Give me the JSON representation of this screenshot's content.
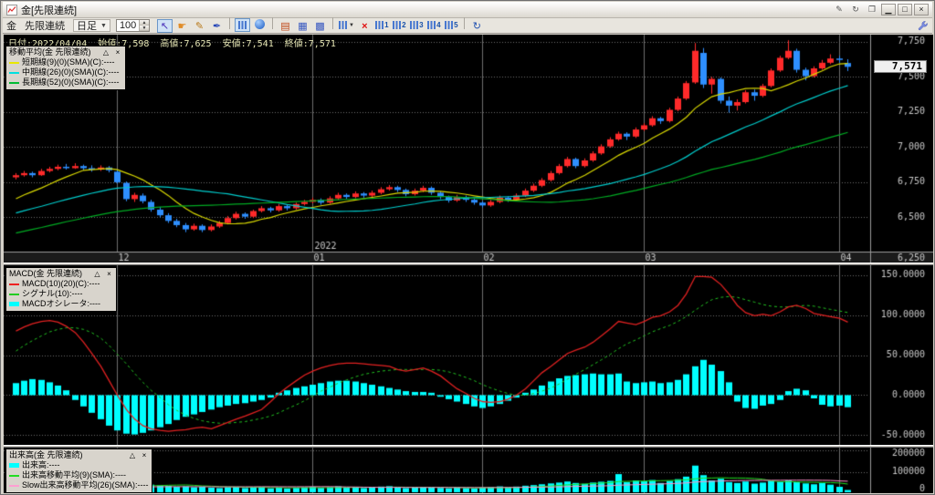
{
  "window": {
    "title": "金[先限連続]",
    "buttons": [
      {
        "name": "annotate-icon",
        "glyph": "✎",
        "style": "flat"
      },
      {
        "name": "refresh-window-icon",
        "glyph": "↻",
        "style": "flat"
      },
      {
        "name": "duplicate-window-icon",
        "glyph": "❐",
        "style": "flat"
      },
      {
        "name": "minimize-button",
        "glyph": "▁",
        "style": "raised"
      },
      {
        "name": "maximize-button",
        "glyph": "□",
        "style": "raised"
      },
      {
        "name": "close-button",
        "glyph": "×",
        "style": "raised"
      }
    ]
  },
  "toolbar": {
    "symbol": "金",
    "series": "先限連続",
    "timeframe": "日足",
    "dropdown_arrow": "▼",
    "bar_count": "100",
    "spin_up": "▲",
    "spin_down": "▼",
    "buttons": [
      {
        "name": "select-cursor-button",
        "glyph": "↖",
        "color": "#4a30b8",
        "selected": true
      },
      {
        "name": "pan-hand-button",
        "glyph": "☛",
        "color": "#e08c28"
      },
      {
        "name": "pencil-button",
        "glyph": "✎",
        "color": "#b87818"
      },
      {
        "name": "pen-button",
        "glyph": "✒",
        "color": "#2848b8"
      },
      {
        "type": "sep"
      },
      {
        "name": "chart-cursor-button",
        "bars": true,
        "selected": true
      },
      {
        "name": "scroll-latest-button",
        "shape": "circle"
      },
      {
        "type": "sep"
      },
      {
        "name": "memo-button",
        "glyph": "▤",
        "color": "#c04818"
      },
      {
        "name": "quote-table-button",
        "glyph": "▦",
        "color": "#3858c0"
      },
      {
        "name": "grid-button",
        "glyph": "▩",
        "color": "#3858c0"
      },
      {
        "type": "sep"
      },
      {
        "name": "chart-type-button",
        "bars": true,
        "dropdown": true
      },
      {
        "name": "delete-chart-button",
        "glyph": "×",
        "color": "#e01010",
        "bold": true
      },
      {
        "name": "board-1-button",
        "bars": true,
        "glyph": "1"
      },
      {
        "name": "board-2-button",
        "bars": true,
        "glyph": "2"
      },
      {
        "name": "board-3-button",
        "bars": true,
        "glyph": "3"
      },
      {
        "name": "board-4-button",
        "bars": true,
        "glyph": "4"
      },
      {
        "name": "board-5-button",
        "bars": true,
        "glyph": "5"
      },
      {
        "type": "sep"
      },
      {
        "name": "refresh-button",
        "glyph": "↻",
        "color": "#2050b0"
      }
    ]
  },
  "header_info": "日付:2022/04/04  始値:7,598  高値:7,625  安値:7,541  終値:7,571",
  "legends": {
    "min_glyph": "△",
    "close_glyph": "×",
    "ma": {
      "title": "移動平均(金 先限連続)",
      "rows": [
        {
          "color": "#e8e800",
          "label": "短期線(9)(0)(SMA)(C):----"
        },
        {
          "color": "#00e0e0",
          "label": "中期線(26)(0)(SMA)(C):----"
        },
        {
          "color": "#00bb33",
          "label": "長期線(52)(0)(SMA)(C):----"
        }
      ]
    },
    "macd": {
      "title": "MACD(金 先限連続)",
      "rows": [
        {
          "color": "#ee2222",
          "label": "MACD(10)(20)(C):----"
        },
        {
          "color": "#22cc22",
          "label": "シグナル(10):----"
        },
        {
          "color": "#00ffff",
          "label": "MACDオシレータ:----"
        }
      ]
    },
    "volume": {
      "title": "出来高(金 先限連続)",
      "rows": [
        {
          "color": "#00ffff",
          "label": "出来高:----"
        },
        {
          "color": "#22dd22",
          "label": "出来高移動平均(9)(SMA):----"
        },
        {
          "color": "#ff9ed2",
          "label": "Slow出来高移動平均(26)(SMA):----"
        }
      ]
    }
  },
  "chart_data": [
    {
      "type": "candlestick",
      "name": "price-panel",
      "symbol": "金 先限連続 日足",
      "current_price": 7571,
      "current_price_label": "7,571",
      "ylim": [
        6250,
        7800
      ],
      "y_ticks": [
        6250,
        6500,
        6750,
        7000,
        7250,
        7500,
        7750
      ],
      "y_tick_labels": [
        "6,250",
        "6,500",
        "6,750",
        "7,000",
        "7,250",
        "7,500",
        "7,750"
      ],
      "x_ticks": [
        {
          "i": 12,
          "label": "12"
        },
        {
          "i": 35,
          "label": "01"
        },
        {
          "i": 55,
          "label": "02"
        },
        {
          "i": 74,
          "label": "03"
        },
        {
          "i": 97,
          "label": "04"
        }
      ],
      "year_annotation": {
        "i": 35,
        "label": "2022"
      },
      "up_color": "#ff2a2a",
      "down_color": "#2e8fff",
      "ma_lines": [
        {
          "period": 9,
          "color": "#d8d800",
          "label": "短期線(9)"
        },
        {
          "period": 26,
          "color": "#00cccc",
          "label": "中期線(26)"
        },
        {
          "period": 52,
          "color": "#00aa22",
          "label": "長期線(52)"
        }
      ],
      "ma_seed": {
        "start": 6100,
        "end": 6650,
        "count": 52
      },
      "ohlc": [
        [
          6785,
          6815,
          6770,
          6800
        ],
        [
          6800,
          6830,
          6790,
          6815
        ],
        [
          6815,
          6825,
          6785,
          6800
        ],
        [
          6800,
          6845,
          6795,
          6830
        ],
        [
          6830,
          6860,
          6820,
          6845
        ],
        [
          6845,
          6875,
          6835,
          6860
        ],
        [
          6860,
          6880,
          6840,
          6850
        ],
        [
          6850,
          6885,
          6845,
          6865
        ],
        [
          6865,
          6875,
          6835,
          6850
        ],
        [
          6850,
          6870,
          6825,
          6840
        ],
        [
          6840,
          6870,
          6830,
          6855
        ],
        [
          6855,
          6865,
          6820,
          6835
        ],
        [
          6825,
          6835,
          6740,
          6750
        ],
        [
          6745,
          6755,
          6615,
          6630
        ],
        [
          6630,
          6675,
          6610,
          6660
        ],
        [
          6655,
          6670,
          6600,
          6615
        ],
        [
          6610,
          6625,
          6540,
          6555
        ],
        [
          6555,
          6575,
          6500,
          6515
        ],
        [
          6515,
          6530,
          6460,
          6475
        ],
        [
          6475,
          6490,
          6430,
          6445
        ],
        [
          6445,
          6460,
          6395,
          6415
        ],
        [
          6415,
          6455,
          6405,
          6440
        ],
        [
          6440,
          6450,
          6395,
          6410
        ],
        [
          6410,
          6450,
          6400,
          6435
        ],
        [
          6435,
          6475,
          6425,
          6460
        ],
        [
          6460,
          6510,
          6450,
          6495
        ],
        [
          6495,
          6540,
          6485,
          6525
        ],
        [
          6525,
          6535,
          6490,
          6505
        ],
        [
          6505,
          6555,
          6495,
          6545
        ],
        [
          6545,
          6580,
          6535,
          6565
        ],
        [
          6565,
          6575,
          6535,
          6550
        ],
        [
          6550,
          6595,
          6540,
          6580
        ],
        [
          6580,
          6590,
          6550,
          6565
        ],
        [
          6565,
          6605,
          6555,
          6595
        ],
        [
          6595,
          6625,
          6585,
          6610
        ],
        [
          6610,
          6640,
          6600,
          6625
        ],
        [
          6625,
          6635,
          6590,
          6605
        ],
        [
          6605,
          6650,
          6595,
          6635
        ],
        [
          6635,
          6675,
          6625,
          6660
        ],
        [
          6660,
          6670,
          6630,
          6645
        ],
        [
          6645,
          6685,
          6635,
          6670
        ],
        [
          6670,
          6680,
          6640,
          6655
        ],
        [
          6655,
          6690,
          6645,
          6675
        ],
        [
          6675,
          6715,
          6665,
          6700
        ],
        [
          6700,
          6730,
          6690,
          6715
        ],
        [
          6715,
          6725,
          6680,
          6695
        ],
        [
          6695,
          6705,
          6650,
          6665
        ],
        [
          6665,
          6705,
          6655,
          6690
        ],
        [
          6690,
          6725,
          6680,
          6710
        ],
        [
          6710,
          6720,
          6660,
          6675
        ],
        [
          6675,
          6685,
          6630,
          6645
        ],
        [
          6645,
          6655,
          6605,
          6620
        ],
        [
          6620,
          6660,
          6610,
          6645
        ],
        [
          6645,
          6655,
          6610,
          6625
        ],
        [
          6625,
          6635,
          6590,
          6605
        ],
        [
          6605,
          6615,
          6570,
          6585
        ],
        [
          6585,
          6625,
          6575,
          6610
        ],
        [
          6610,
          6655,
          6600,
          6640
        ],
        [
          6640,
          6650,
          6610,
          6625
        ],
        [
          6625,
          6670,
          6615,
          6655
        ],
        [
          6655,
          6705,
          6645,
          6690
        ],
        [
          6690,
          6740,
          6680,
          6725
        ],
        [
          6725,
          6780,
          6715,
          6765
        ],
        [
          6765,
          6830,
          6755,
          6815
        ],
        [
          6815,
          6880,
          6805,
          6865
        ],
        [
          6865,
          6930,
          6855,
          6915
        ],
        [
          6915,
          6925,
          6850,
          6865
        ],
        [
          6865,
          6920,
          6855,
          6905
        ],
        [
          6905,
          6970,
          6895,
          6955
        ],
        [
          6955,
          7020,
          6945,
          7005
        ],
        [
          7005,
          7070,
          6995,
          7055
        ],
        [
          7055,
          7110,
          7045,
          7095
        ],
        [
          7095,
          7105,
          7050,
          7075
        ],
        [
          7075,
          7140,
          7065,
          7125
        ],
        [
          7125,
          7170,
          7115,
          7155
        ],
        [
          7155,
          7220,
          7145,
          7205
        ],
        [
          7205,
          7215,
          7165,
          7185
        ],
        [
          7185,
          7280,
          7175,
          7265
        ],
        [
          7265,
          7360,
          7255,
          7345
        ],
        [
          7345,
          7470,
          7335,
          7455
        ],
        [
          7460,
          7740,
          7450,
          7685
        ],
        [
          7670,
          7705,
          7420,
          7445
        ],
        [
          7445,
          7500,
          7380,
          7485
        ],
        [
          7485,
          7495,
          7310,
          7330
        ],
        [
          7330,
          7360,
          7245,
          7295
        ],
        [
          7295,
          7340,
          7260,
          7320
        ],
        [
          7320,
          7405,
          7310,
          7390
        ],
        [
          7390,
          7410,
          7330,
          7365
        ],
        [
          7365,
          7450,
          7355,
          7435
        ],
        [
          7435,
          7560,
          7425,
          7545
        ],
        [
          7545,
          7650,
          7535,
          7635
        ],
        [
          7635,
          7760,
          7625,
          7685
        ],
        [
          7685,
          7700,
          7530,
          7550
        ],
        [
          7550,
          7565,
          7475,
          7505
        ],
        [
          7505,
          7575,
          7495,
          7560
        ],
        [
          7560,
          7620,
          7550,
          7600
        ],
        [
          7600,
          7660,
          7590,
          7630
        ],
        [
          7630,
          7650,
          7600,
          7620
        ],
        [
          7598,
          7625,
          7541,
          7571
        ]
      ]
    },
    {
      "type": "macd",
      "name": "macd-panel",
      "ylim": [
        -62,
        162
      ],
      "y_ticks": [
        -50,
        0,
        50,
        100,
        150
      ],
      "y_tick_labels": [
        "-50.0000",
        "0.0000",
        "50.0000",
        "100.0000",
        "150.0000"
      ],
      "macd_color": "#e02020",
      "signal_color": "#20c020",
      "hist_color": "#00ffff",
      "macd": [
        80,
        85,
        89,
        92,
        93,
        91,
        86,
        78,
        66,
        52,
        36,
        18,
        0,
        -18,
        -30,
        -38,
        -42,
        -44,
        -45,
        -44,
        -43,
        -41,
        -40,
        -42,
        -38,
        -34,
        -30,
        -26,
        -22,
        -18,
        -8,
        2,
        10,
        18,
        25,
        30,
        34,
        37,
        39,
        40,
        40,
        39,
        38,
        37,
        36,
        32,
        30,
        32,
        34,
        30,
        24,
        16,
        8,
        2,
        -4,
        -8,
        -9,
        -8,
        -5,
        0,
        8,
        18,
        28,
        36,
        44,
        52,
        56,
        60,
        66,
        74,
        83,
        92,
        90,
        88,
        92,
        97,
        99,
        104,
        112,
        126,
        148,
        148,
        147,
        138,
        126,
        112,
        103,
        99,
        101,
        99,
        104,
        110,
        112,
        108,
        102,
        100,
        98,
        96,
        91
      ],
      "signal": [
        55,
        62,
        68,
        74,
        79,
        82,
        84,
        84,
        82,
        78,
        71,
        62,
        51,
        39,
        27,
        16,
        6,
        -3,
        -12,
        -19,
        -25,
        -29,
        -32,
        -34,
        -35,
        -35,
        -34,
        -33,
        -31,
        -29,
        -26,
        -22,
        -17,
        -12,
        -7,
        -1,
        5,
        10,
        15,
        19,
        23,
        26,
        28,
        30,
        31,
        32,
        32,
        32,
        32,
        32,
        31,
        29,
        26,
        22,
        18,
        13,
        9,
        5,
        2,
        0,
        0,
        2,
        5,
        9,
        14,
        20,
        26,
        32,
        38,
        44,
        51,
        58,
        64,
        69,
        74,
        79,
        83,
        87,
        92,
        98,
        106,
        113,
        119,
        122,
        123,
        122,
        119,
        116,
        113,
        111,
        110,
        110,
        111,
        112,
        111,
        109,
        107,
        105,
        103
      ],
      "histogram": [
        15,
        18,
        20,
        19,
        16,
        12,
        6,
        -6,
        -14,
        -22,
        -30,
        -38,
        -44,
        -48,
        -49,
        -47,
        -44,
        -40,
        -36,
        -31,
        -27,
        -24,
        -21,
        -18,
        -15,
        -13,
        -11,
        -10,
        -8,
        -6,
        -3,
        3,
        6,
        9,
        11,
        13,
        15,
        17,
        18,
        18,
        17,
        15,
        13,
        11,
        9,
        7,
        5,
        4,
        4,
        3,
        -2,
        -5,
        -8,
        -11,
        -14,
        -16,
        -14,
        -11,
        -7,
        -3,
        3,
        7,
        12,
        17,
        21,
        24,
        25,
        26,
        27,
        26,
        26,
        27,
        17,
        15,
        16,
        17,
        15,
        16,
        19,
        26,
        36,
        44,
        38,
        30,
        16,
        -8,
        -16,
        -17,
        -13,
        -11,
        -6,
        5,
        8,
        6,
        -4,
        -12,
        -14,
        -13,
        -15
      ]
    },
    {
      "type": "volume",
      "name": "volume-panel",
      "ylim": [
        0,
        215000
      ],
      "y_ticks": [
        0,
        100000,
        200000
      ],
      "y_tick_labels": [
        "0",
        "100000",
        "200000"
      ],
      "bar_color": "#00ffff",
      "ma_color": "#20dd20",
      "slow_ma_color": "#ff8ec8",
      "ma_periods": [
        9,
        26
      ],
      "values": [
        28000,
        22000,
        25000,
        20000,
        24000,
        30000,
        26000,
        22000,
        25000,
        21000,
        23000,
        26000,
        45000,
        52000,
        38000,
        42000,
        40000,
        36000,
        34000,
        30000,
        32000,
        28000,
        30000,
        26000,
        24000,
        28000,
        30000,
        24000,
        27000,
        29000,
        23000,
        26000,
        22000,
        25000,
        27000,
        30000,
        25000,
        28000,
        32000,
        26000,
        29000,
        24000,
        27000,
        31000,
        33000,
        27000,
        24000,
        26000,
        30000,
        27000,
        25000,
        23000,
        26000,
        24000,
        22000,
        26000,
        28000,
        32000,
        27000,
        31000,
        35000,
        38000,
        42000,
        46000,
        50000,
        55000,
        48000,
        44000,
        50000,
        54000,
        58000,
        90000,
        52000,
        60000,
        56000,
        62000,
        48000,
        58000,
        66000,
        78000,
        130000,
        85000,
        60000,
        68000,
        52000,
        48000,
        55000,
        45000,
        50000,
        58000,
        54000,
        60000,
        52000,
        46000,
        42000,
        48000,
        40000,
        30000,
        15000
      ]
    }
  ]
}
